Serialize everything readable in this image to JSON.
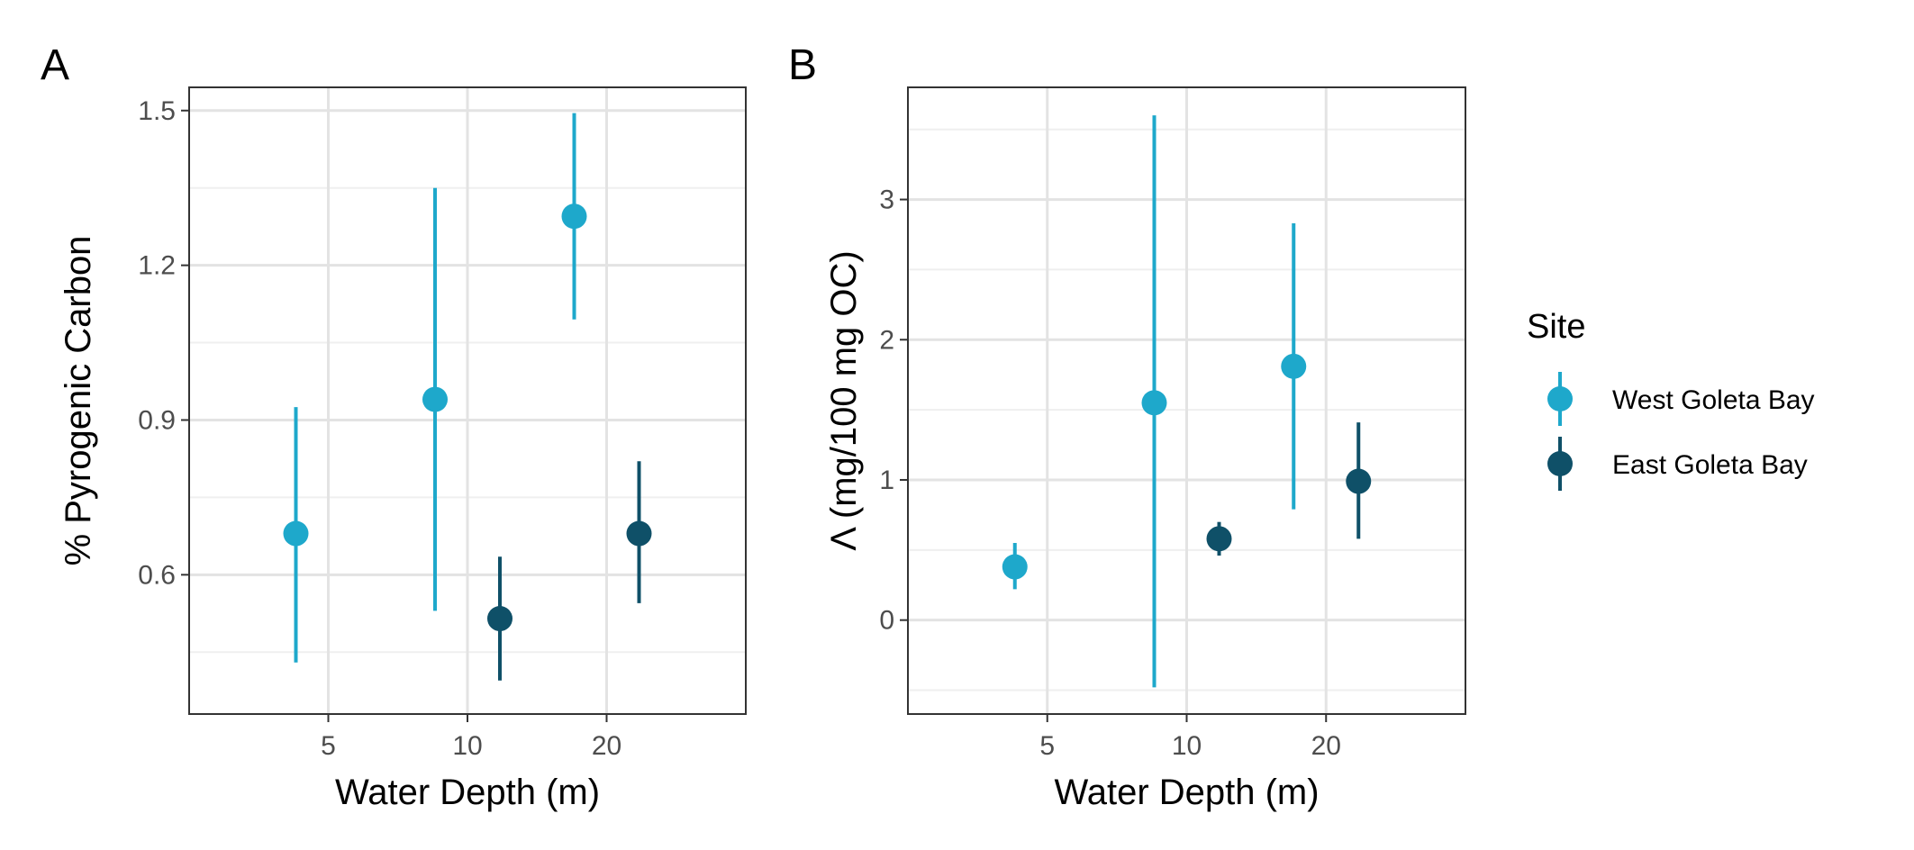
{
  "legend": {
    "title": "Site",
    "entries": [
      {
        "name": "West Goleta Bay",
        "color": "#1ea8cb"
      },
      {
        "name": "East Goleta Bay",
        "color": "#0f5068"
      }
    ]
  },
  "chart_data": [
    {
      "type": "scatter",
      "panel_label": "A",
      "xlabel": "Water Depth (m)",
      "ylabel": "% Pyrogenic Carbon",
      "x_categories": [
        "5",
        "10",
        "20"
      ],
      "ylim": [
        0.33,
        1.545
      ],
      "yticks": [
        0.6,
        0.9,
        1.2,
        1.5
      ],
      "ytick_labels": [
        "0.6",
        "0.9",
        "1.2",
        "1.5"
      ],
      "grid": true,
      "series": [
        {
          "name": "West Goleta Bay",
          "color": "#1ea8cb",
          "points": [
            {
              "x": "5",
              "y": 0.68,
              "ymin": 0.43,
              "ymax": 0.925
            },
            {
              "x": "10",
              "y": 0.94,
              "ymin": 0.53,
              "ymax": 1.35
            },
            {
              "x": "20",
              "y": 1.295,
              "ymin": 1.095,
              "ymax": 1.495
            }
          ]
        },
        {
          "name": "East Goleta Bay",
          "color": "#0f5068",
          "points": [
            {
              "x": "10",
              "y": 0.515,
              "ymin": 0.395,
              "ymax": 0.635
            },
            {
              "x": "20",
              "y": 0.68,
              "ymin": 0.545,
              "ymax": 0.82
            }
          ]
        }
      ]
    },
    {
      "type": "scatter",
      "panel_label": "B",
      "xlabel": "Water Depth (m)",
      "ylabel": "Λ (mg/100 mg OC)",
      "x_categories": [
        "5",
        "10",
        "20"
      ],
      "ylim": [
        -0.67,
        3.8
      ],
      "yticks": [
        0,
        1,
        2,
        3
      ],
      "ytick_labels": [
        "0",
        "1",
        "2",
        "3"
      ],
      "grid": true,
      "series": [
        {
          "name": "West Goleta Bay",
          "color": "#1ea8cb",
          "points": [
            {
              "x": "5",
              "y": 0.38,
              "ymin": 0.22,
              "ymax": 0.55
            },
            {
              "x": "10",
              "y": 1.55,
              "ymin": -0.48,
              "ymax": 3.6
            },
            {
              "x": "20",
              "y": 1.81,
              "ymin": 0.79,
              "ymax": 2.83
            }
          ]
        },
        {
          "name": "East Goleta Bay",
          "color": "#0f5068",
          "points": [
            {
              "x": "10",
              "y": 0.58,
              "ymin": 0.46,
              "ymax": 0.7
            },
            {
              "x": "20",
              "y": 0.99,
              "ymin": 0.58,
              "ymax": 1.41
            }
          ]
        }
      ]
    }
  ]
}
